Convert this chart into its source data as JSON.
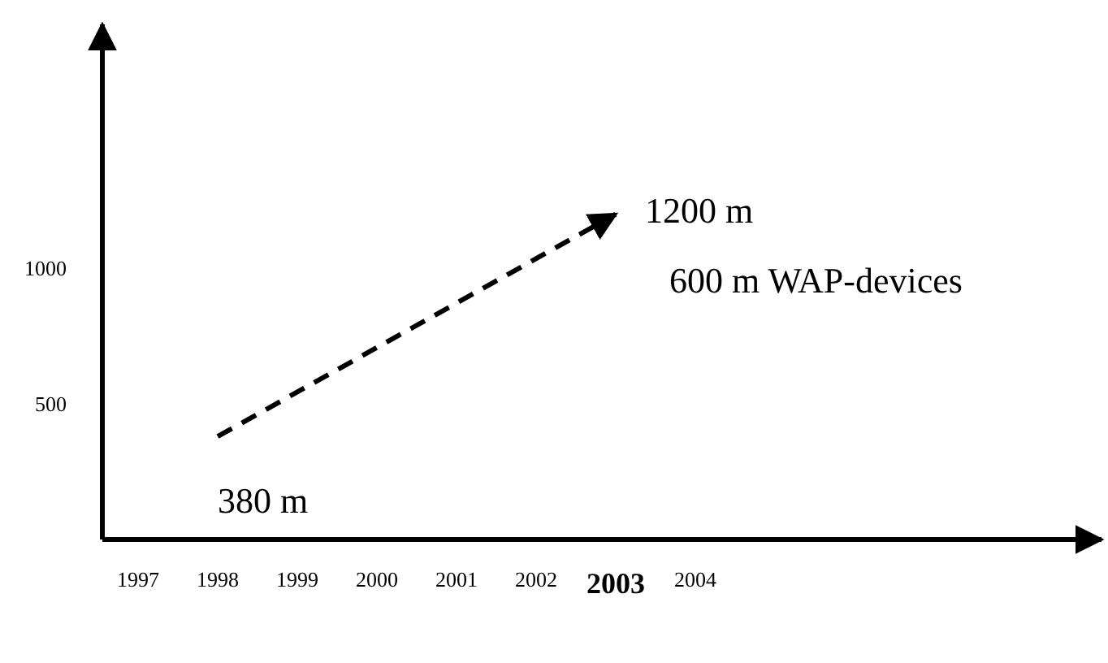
{
  "chart_data": {
    "type": "line",
    "categories": [
      "1997",
      "1998",
      "1999",
      "2000",
      "2001",
      "2002",
      "2003",
      "2004"
    ],
    "series": [
      {
        "color": "#000000",
        "values": [
          null,
          380,
          null,
          null,
          null,
          null,
          1200,
          null
        ],
        "value_labels": [
          null,
          "380 m",
          null,
          null,
          null,
          null,
          "1200 m",
          null
        ]
      }
    ],
    "ylim": [
      0,
      1900
    ],
    "yticks": [
      500,
      1000
    ],
    "line_style": "dashed",
    "marker": "none",
    "grid": false,
    "annotations": [
      "600 m WAP-devices"
    ]
  }
}
